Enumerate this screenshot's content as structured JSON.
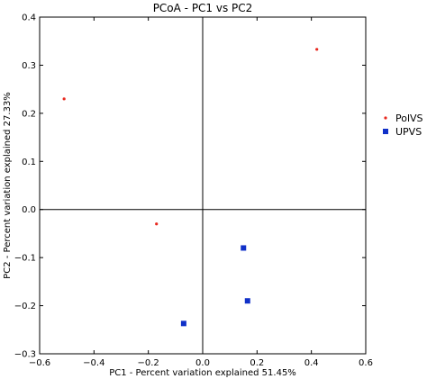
{
  "chart_data": {
    "type": "scatter",
    "title": "PCoA - PC1 vs PC2",
    "xlabel": "PC1 - Percent variation explained 51.45%",
    "ylabel": "PC2 - Percent variation explained 27.33%",
    "xlim": [
      -0.6,
      0.6
    ],
    "ylim": [
      -0.3,
      0.4
    ],
    "xticks": [
      -0.6,
      -0.4,
      -0.2,
      0.0,
      0.2,
      0.4,
      0.6
    ],
    "yticks": [
      -0.3,
      -0.2,
      -0.1,
      0.0,
      0.1,
      0.2,
      0.3,
      0.4
    ],
    "xtick_labels": [
      "−0.6",
      "−0.4",
      "−0.2",
      "0.0",
      "0.2",
      "0.4",
      "0.6"
    ],
    "ytick_labels": [
      "−0.3",
      "−0.2",
      "−0.1",
      "0.0",
      "0.1",
      "0.2",
      "0.3",
      "0.4"
    ],
    "grid": false,
    "zero_lines": true,
    "legend_position": "right",
    "series": [
      {
        "name": "PolVS",
        "marker": "circle",
        "color": "#e8281e",
        "points": [
          {
            "x": -0.51,
            "y": 0.23
          },
          {
            "x": -0.17,
            "y": -0.03
          },
          {
            "x": 0.42,
            "y": 0.333
          }
        ]
      },
      {
        "name": "UPVS",
        "marker": "square",
        "color": "#1030c8",
        "points": [
          {
            "x": 0.15,
            "y": -0.08
          },
          {
            "x": 0.165,
            "y": -0.19
          },
          {
            "x": -0.07,
            "y": -0.237
          }
        ]
      }
    ]
  }
}
